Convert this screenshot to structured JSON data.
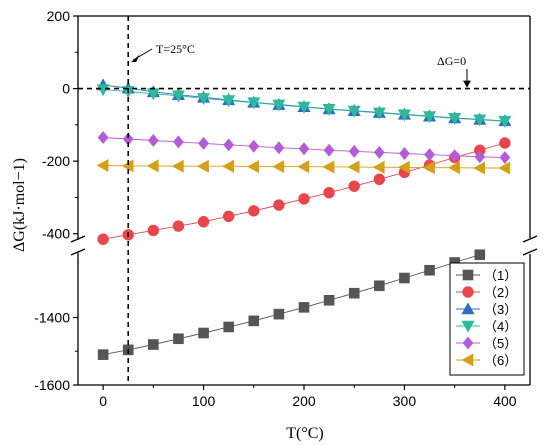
{
  "chart_data": {
    "type": "scatter",
    "xlabel": "T(°C)",
    "ylabel": "ΔG(kJ·mol−1)",
    "x_ticks": [
      "0",
      "100",
      "200",
      "300",
      "400"
    ],
    "y_ticks_upper": [
      "200",
      "0",
      "-200",
      "-400"
    ],
    "y_ticks_lower": [
      "-1400",
      "-1600"
    ],
    "xlim": [
      -25,
      425
    ],
    "ylim_upper": [
      -500,
      200
    ],
    "ylim_lower": [
      -1600,
      -1200
    ],
    "axis_break": "between -500 and -1200 on y axis",
    "grid": false,
    "legend_position": "bottom-right",
    "annotations": {
      "vline_label": "T=25°C",
      "vline_x": 25,
      "hline_label": "ΔG=0",
      "hline_y": 0
    },
    "x": [
      0,
      25,
      50,
      75,
      100,
      125,
      150,
      175,
      200,
      225,
      250,
      275,
      300,
      325,
      350,
      375,
      400
    ],
    "series": [
      {
        "name": "（1）",
        "color": "#555555",
        "marker": "square",
        "x": [
          0,
          25,
          50,
          75,
          100,
          125,
          150,
          175,
          200,
          225,
          250,
          275,
          300,
          325,
          350,
          375
        ],
        "values": [
          -1510,
          -1496,
          -1480,
          -1463,
          -1446,
          -1428,
          -1410,
          -1390,
          -1370,
          -1349,
          -1328,
          -1306,
          -1283,
          -1260,
          -1237,
          -1214
        ]
      },
      {
        "name": "（2）",
        "color": "#e8464b",
        "marker": "circle",
        "x": [
          0,
          25,
          50,
          75,
          100,
          125,
          150,
          175,
          200,
          225,
          250,
          275,
          300,
          325,
          350,
          375,
          400
        ],
        "values": [
          -415,
          -403,
          -391,
          -379,
          -367,
          -352,
          -337,
          -321,
          -304,
          -287,
          -269,
          -250,
          -231,
          -211,
          -190,
          -170,
          -150
        ]
      },
      {
        "name": "（3）",
        "color": "#2b6fbf",
        "marker": "triangle-up",
        "x": [
          0,
          25,
          50,
          75,
          100,
          125,
          150,
          175,
          200,
          225,
          250,
          275,
          300,
          325,
          350,
          375,
          400
        ],
        "values": [
          10,
          1,
          -9,
          -17,
          -24,
          -31,
          -38,
          -44,
          -50,
          -56,
          -61,
          -66,
          -71,
          -76,
          -81,
          -85,
          -89
        ]
      },
      {
        "name": "（4）",
        "color": "#2fb89c",
        "marker": "triangle-down",
        "x": [
          0,
          25,
          50,
          75,
          100,
          125,
          150,
          175,
          200,
          225,
          250,
          275,
          300,
          325,
          350,
          375,
          400
        ],
        "values": [
          -3,
          -8,
          -14,
          -20,
          -27,
          -33,
          -39,
          -45,
          -51,
          -57,
          -62,
          -67,
          -72,
          -77,
          -82,
          -86,
          -90
        ]
      },
      {
        "name": "（5）",
        "color": "#b45cd8",
        "marker": "diamond",
        "x": [
          0,
          25,
          50,
          75,
          100,
          125,
          150,
          175,
          200,
          225,
          250,
          275,
          300,
          325,
          350,
          375,
          400
        ],
        "values": [
          -135,
          -139,
          -143,
          -147,
          -151,
          -155,
          -159,
          -163,
          -166,
          -170,
          -173,
          -176,
          -179,
          -182,
          -185,
          -188,
          -190
        ]
      },
      {
        "name": "（6）",
        "color": "#d4a017",
        "marker": "triangle-left",
        "x": [
          0,
          25,
          50,
          75,
          100,
          125,
          150,
          175,
          200,
          225,
          250,
          275,
          300,
          325,
          350,
          375,
          400
        ],
        "values": [
          -212,
          -213,
          -213,
          -214,
          -214,
          -214,
          -215,
          -215,
          -215,
          -216,
          -216,
          -217,
          -217,
          -218,
          -218,
          -219,
          -219
        ]
      }
    ]
  }
}
